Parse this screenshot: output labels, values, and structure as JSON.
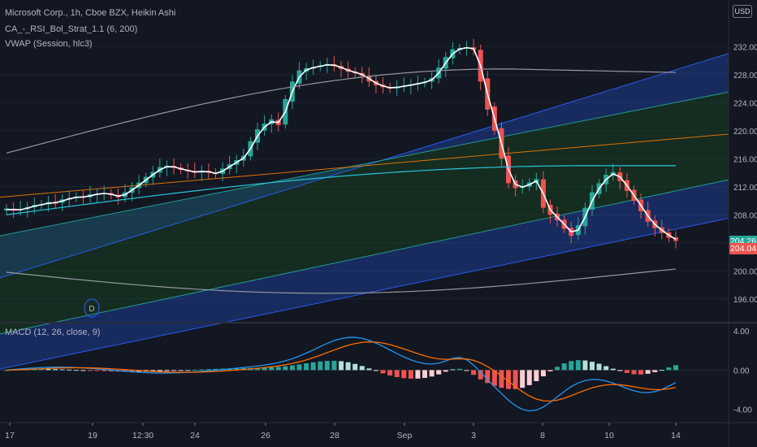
{
  "header": {
    "symbol_line": "Microsoft Corp., 1h, Cboe BZX, Heikin Ashi",
    "indicator1": "CA_-_RSI_Bol_Strat_1.1 (6, 200)",
    "indicator2": "VWAP (Session, hlc3)",
    "currency": "USD"
  },
  "macd": {
    "label": "MACD (12, 26, close, 9)",
    "y_ticks": [
      "4.00",
      "0.00",
      "-4.00"
    ]
  },
  "price_axis": {
    "ticks": [
      "232.00",
      "228.00",
      "224.00",
      "220.00",
      "216.00",
      "212.00",
      "208.00",
      "204.00",
      "200.00",
      "196.00"
    ],
    "last_price": "204.26",
    "last_price_color": "#26a69a",
    "vwap_price": "204.04",
    "vwap_color": "#ef5350"
  },
  "time_axis": {
    "ticks": [
      "17",
      "19",
      "12:30",
      "24",
      "26",
      "28",
      "Sep",
      "3",
      "8",
      "10",
      "14"
    ]
  },
  "marker": {
    "label": "D"
  },
  "colors": {
    "background": "#131722",
    "up": "#26a69a",
    "down": "#ef5350",
    "channel": "#2962ff",
    "macd_line": "#2196f3",
    "signal_line": "#ff6d00"
  },
  "chart_data": {
    "type": "candlestick",
    "price_range": [
      194,
      234
    ],
    "macd_range": [
      -5.2,
      4.6
    ],
    "candles_close": [
      208.9,
      208.6,
      208.8,
      209.1,
      209.4,
      209.5,
      209.8,
      209.7,
      210.2,
      210.4,
      210.6,
      210.5,
      210.9,
      211.0,
      211.1,
      210.8,
      210.5,
      211.2,
      211.9,
      212.6,
      213.4,
      214.1,
      214.8,
      215.0,
      214.7,
      214.4,
      214.2,
      214.0,
      214.3,
      214.0,
      213.8,
      214.6,
      215.2,
      215.8,
      216.4,
      218.5,
      220.2,
      221.0,
      221.6,
      220.8,
      224.5,
      227.0,
      228.6,
      228.9,
      229.1,
      229.3,
      229.5,
      229.2,
      228.8,
      228.4,
      228.2,
      227.8,
      227.0,
      226.5,
      226.2,
      226.0,
      226.3,
      226.4,
      226.6,
      226.8,
      227.0,
      227.5,
      229.0,
      230.5,
      231.6,
      231.8,
      231.9,
      231.5,
      227.0,
      223.0,
      220.0,
      216.0,
      212.5,
      211.8,
      212.0,
      212.6,
      213.1,
      209.0,
      208.0,
      207.2,
      206.0,
      205.0,
      206.5,
      209.0,
      211.2,
      212.5,
      213.7,
      214.1,
      212.8,
      211.4,
      210.0,
      208.5,
      207.0,
      206.1,
      205.4,
      204.7,
      204.26
    ]
  }
}
